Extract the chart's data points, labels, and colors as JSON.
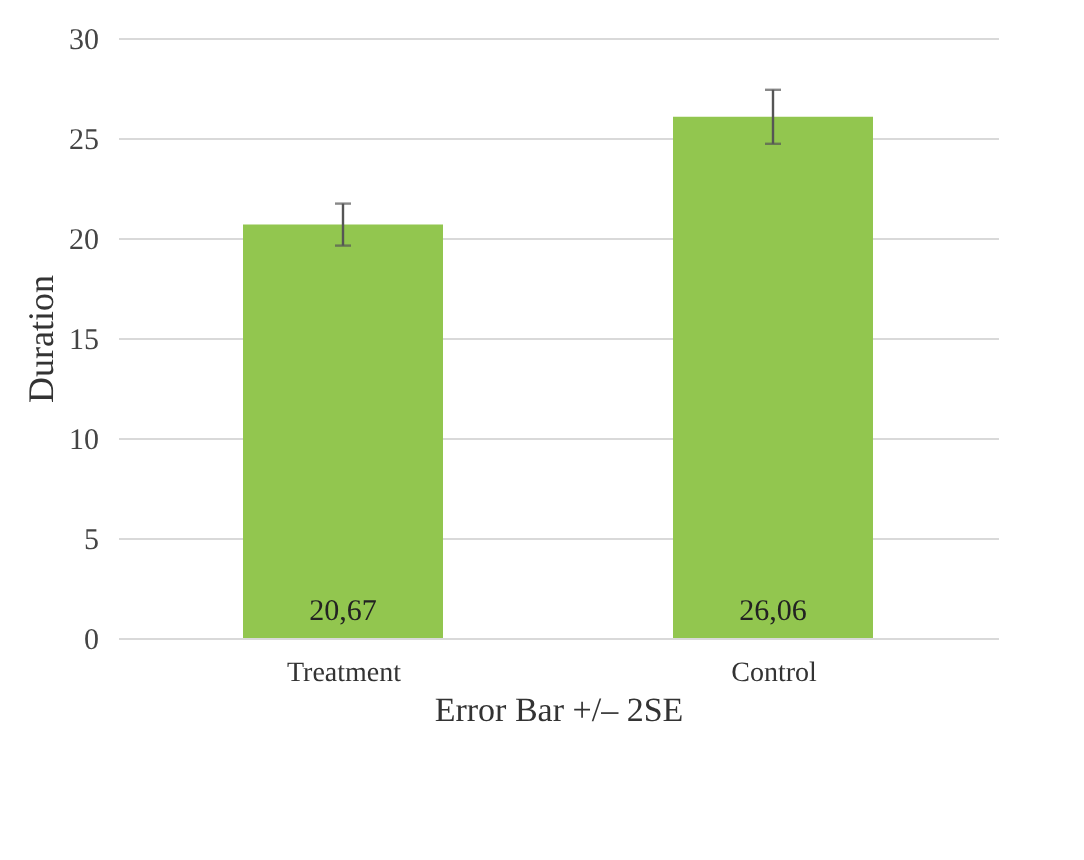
{
  "chart_data": {
    "type": "bar",
    "xlabel": "Error Bar +/– 2SE",
    "ylabel": "Duration",
    "categories": [
      "Treatment",
      "Control"
    ],
    "values": [
      20.67,
      26.06
    ],
    "color": "#92c64f",
    "errors": [
      1.05,
      1.35
    ],
    "value_labels": [
      "20,67",
      "26,06"
    ],
    "ylim": [
      0,
      30
    ],
    "yticks": [
      0,
      5,
      10,
      15,
      20,
      25,
      30
    ],
    "grid": "y"
  }
}
